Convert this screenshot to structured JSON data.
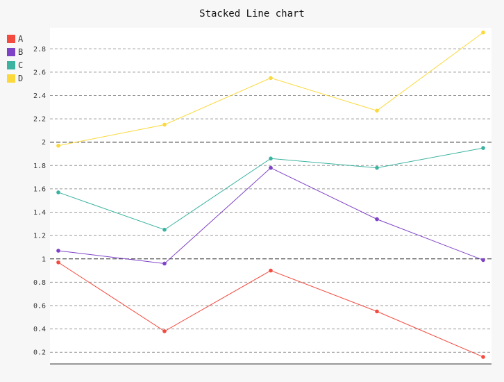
{
  "chart_data": {
    "type": "line",
    "title": "Stacked Line chart",
    "xlabel": "",
    "ylabel": "",
    "x": [
      1,
      2,
      3,
      4,
      5
    ],
    "ylim": [
      0.1,
      2.98
    ],
    "yticks": [
      "0.2",
      "0.4",
      "0.6",
      "0.8",
      "1",
      "1.2",
      "1.4",
      "1.6",
      "1.8",
      "2",
      "2.2",
      "2.4",
      "2.6",
      "2.8"
    ],
    "grid": true,
    "major_ticks": [
      "1",
      "2"
    ],
    "legend_position": "top-left",
    "series": [
      {
        "name": "A",
        "color": "#f34b3f",
        "values": [
          0.97,
          0.38,
          0.9,
          0.55,
          0.16
        ]
      },
      {
        "name": "B",
        "color": "#7e42c7",
        "values": [
          1.07,
          0.96,
          1.78,
          1.34,
          0.99
        ]
      },
      {
        "name": "C",
        "color": "#3bb3a0",
        "values": [
          1.57,
          1.25,
          1.86,
          1.78,
          1.95
        ]
      },
      {
        "name": "D",
        "color": "#fbd93c",
        "values": [
          1.97,
          2.15,
          2.55,
          2.27,
          2.94
        ]
      }
    ]
  }
}
